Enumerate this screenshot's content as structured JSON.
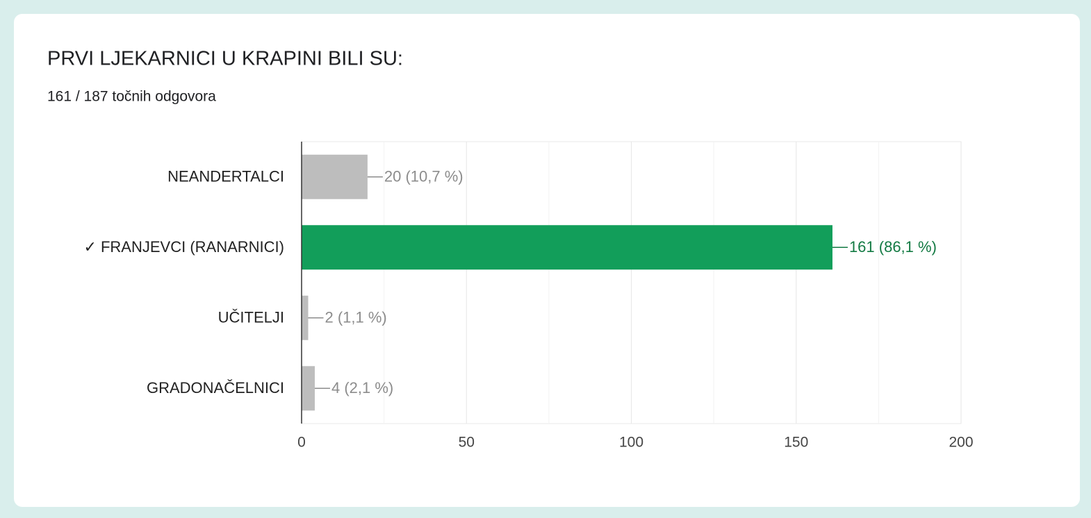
{
  "chart_data": {
    "type": "bar",
    "orientation": "horizontal",
    "title": "PRVI LJEKARNICI U KRAPINI BILI SU:",
    "subtitle": "161 / 187 točnih odgovora",
    "categories": [
      "NEANDERTALCI",
      "✓ FRANJEVCI (RANARNICI)",
      "UČITELJI",
      "GRADONAČELNICI"
    ],
    "values": [
      20,
      161,
      2,
      4
    ],
    "value_labels": [
      "20 (10,7 %)",
      "161 (86,1 %)",
      "2 (1,1 %)",
      "4 (2,1 %)"
    ],
    "colors": [
      "#bdbdbd",
      "#129e5a",
      "#bdbdbd",
      "#bdbdbd"
    ],
    "label_colors": [
      "#8c8c8c",
      "#137a43",
      "#8c8c8c",
      "#8c8c8c"
    ],
    "xlim": [
      0,
      200
    ],
    "xticks": [
      0,
      50,
      100,
      150,
      200
    ],
    "minor_gridlines": [
      25,
      75,
      125,
      175
    ],
    "grid": true
  }
}
